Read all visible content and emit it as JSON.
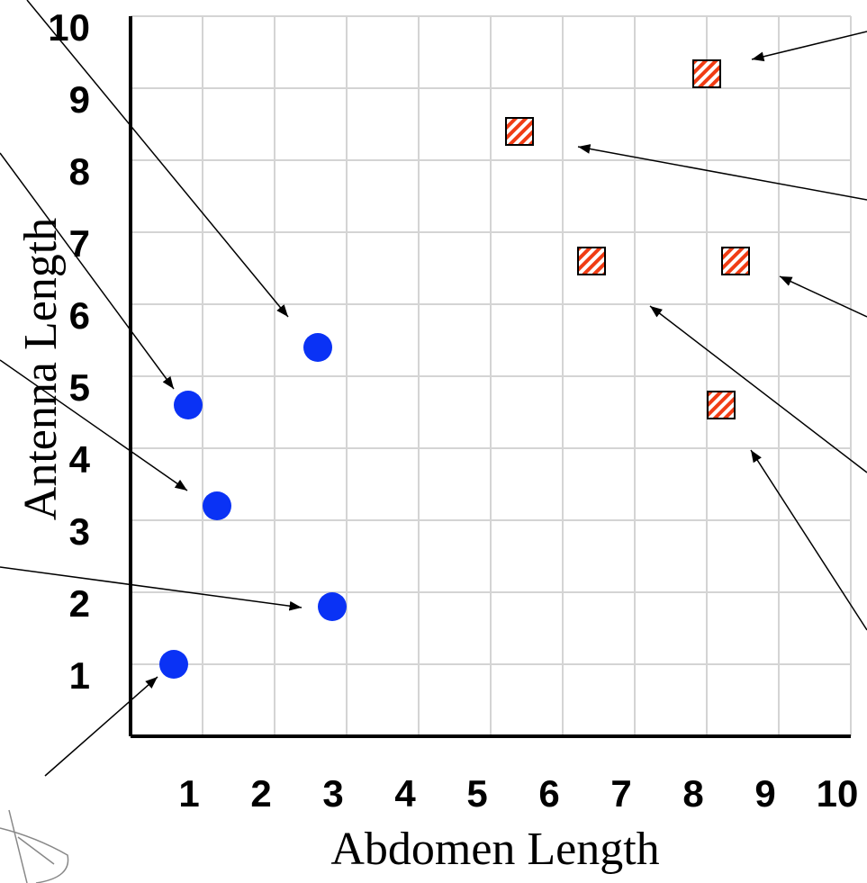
{
  "chart_data": {
    "type": "scatter",
    "xlabel": "Abdomen Length",
    "ylabel": "Antenna Length",
    "xlim": [
      0,
      10
    ],
    "ylim": [
      0,
      10
    ],
    "xticks": [
      1,
      2,
      3,
      4,
      5,
      6,
      7,
      8,
      9,
      10
    ],
    "yticks": [
      1,
      2,
      3,
      4,
      5,
      6,
      7,
      8,
      9,
      10
    ],
    "grid": true,
    "series": [
      {
        "color": "#0a32f5",
        "marker": "circle",
        "x": [
          0.6,
          0.8,
          1.2,
          2.6,
          2.8
        ],
        "values": [
          1.0,
          4.6,
          3.2,
          5.4,
          1.8
        ]
      },
      {
        "color": "#f03c14",
        "marker": "hatched-square",
        "x": [
          8.0,
          5.4,
          6.4,
          8.4,
          8.2
        ],
        "values": [
          9.2,
          8.4,
          6.6,
          6.6,
          4.6
        ]
      }
    ]
  }
}
